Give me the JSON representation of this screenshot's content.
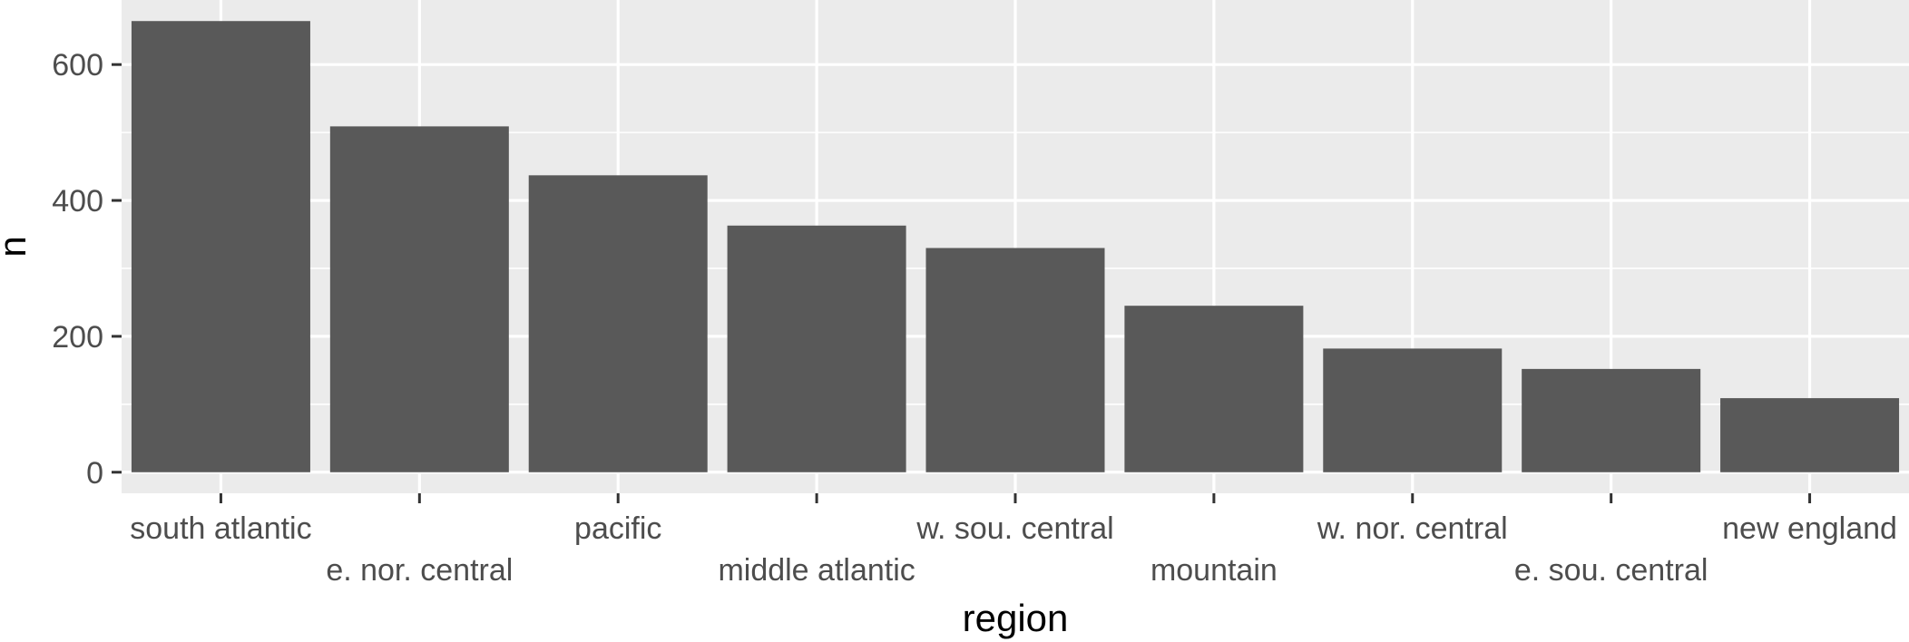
{
  "chart_data": {
    "type": "bar",
    "title": "",
    "xlabel": "region",
    "ylabel": "n",
    "categories": [
      "south atlantic",
      "e. nor. central",
      "pacific",
      "middle atlantic",
      "w. sou. central",
      "mountain",
      "w. nor. central",
      "e. sou. central",
      "new england"
    ],
    "values": [
      664,
      509,
      437,
      363,
      330,
      245,
      182,
      152,
      109
    ],
    "ylim": [
      -31,
      695
    ],
    "y_ticks": [
      0,
      200,
      400,
      600
    ],
    "y_tick_labels": [
      "0",
      "200",
      "400",
      "600"
    ],
    "grid": true,
    "legend": "none",
    "bar_color": "#595959",
    "panel_background": "#ebebeb",
    "gridline_color": "#ffffff"
  }
}
